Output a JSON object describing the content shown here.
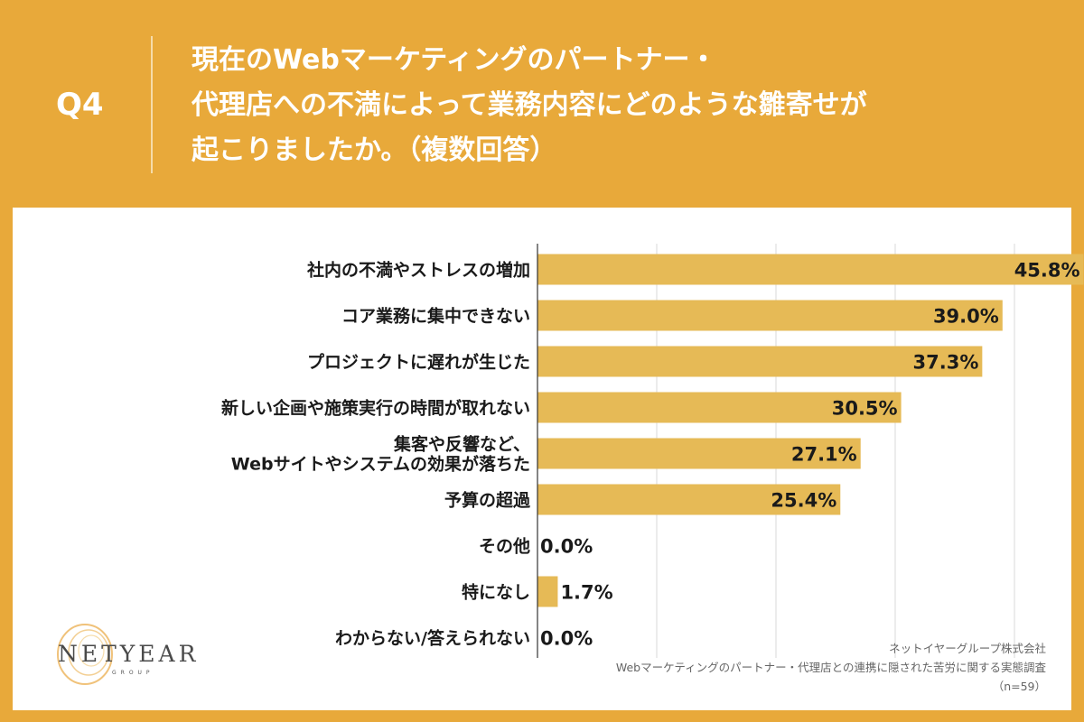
{
  "header": {
    "q_label": "Q4",
    "title_lines": [
      "現在のWebマーケティングのパートナー・",
      "代理店への不満によって業務内容にどのような雛寄せが",
      "起こりましたか。（複数回答）"
    ]
  },
  "logo": {
    "text": "NETYEAR",
    "sub": "GROUP"
  },
  "source": {
    "company": "ネットイヤーグループ株式会社",
    "survey": "Webマーケティングのパートナー・代理店との連携に隠された苦労に関する実態調査",
    "sample": "（n=59）"
  },
  "colors": {
    "background": "#e8a93a",
    "bar": "#e6ba56",
    "grid": "#d9d9d9"
  },
  "chart_data": {
    "type": "bar",
    "orientation": "horizontal",
    "title": "現在のWebマーケティングのパートナー・代理店への不満によって業務内容にどのような雛寄せが起こりましたか。（複数回答）",
    "categories": [
      [
        "社内の不満やストレスの増加"
      ],
      [
        "コア業務に集中できない"
      ],
      [
        "プロジェクトに遅れが生じた"
      ],
      [
        "新しい企画や施策実行の時間が取れない"
      ],
      [
        "集客や反響など、",
        "Webサイトやシステムの効果が落ちた"
      ],
      [
        "予算の超過"
      ],
      [
        "その他"
      ],
      [
        "特になし"
      ],
      [
        "わからない/答えられない"
      ]
    ],
    "values": [
      45.8,
      39.0,
      37.3,
      30.5,
      27.1,
      25.4,
      0.0,
      1.7,
      0.0
    ],
    "value_labels": [
      "45.8%",
      "39.0%",
      "37.3%",
      "30.5%",
      "27.1%",
      "25.4%",
      "0.0%",
      "1.7%",
      "0.0%"
    ],
    "xlim": [
      0,
      50
    ],
    "grid": true,
    "xlabel": "",
    "ylabel": ""
  }
}
